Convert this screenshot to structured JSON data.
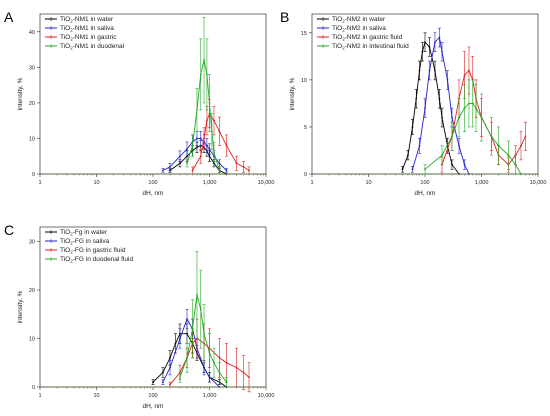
{
  "chart_data": [
    {
      "panel": "A",
      "type": "line",
      "x_scale": "log",
      "xlim": [
        1,
        10000
      ],
      "ylim": [
        0,
        45
      ],
      "xticks": [
        1,
        10,
        100,
        1000,
        10000
      ],
      "xtick_labels": [
        "1",
        "10",
        "100",
        "1,000",
        "10,000"
      ],
      "yticks": [
        0,
        10,
        20,
        30,
        40
      ],
      "ytick_labels": [
        "0",
        "10",
        "20",
        "30",
        "40"
      ],
      "xlabel": "dH, nm",
      "ylabel": "intensity, %",
      "legend_position": "top-left",
      "series": [
        {
          "legend_parts": [
            "TiO",
            "2",
            "-NM1 in water"
          ],
          "color": "#000000",
          "x": [
            200,
            300,
            400,
            500,
            600,
            700,
            800,
            900,
            1000,
            1200,
            1500,
            2000
          ],
          "y": [
            1,
            3,
            5,
            6.5,
            7.5,
            8,
            7.5,
            6.5,
            5,
            3,
            1,
            0
          ],
          "err": [
            0.5,
            1,
            1.5,
            1.5,
            1.5,
            1.5,
            1.5,
            1.5,
            1.5,
            1,
            0.5,
            0
          ]
        },
        {
          "legend_parts": [
            "TiO",
            "2",
            "-NM1 in saliva"
          ],
          "color": "#2222cc",
          "x": [
            150,
            200,
            300,
            400,
            500,
            600,
            700,
            800,
            900,
            1000,
            1200,
            1500,
            2000
          ],
          "y": [
            1,
            2,
            5,
            7,
            9,
            10,
            10,
            9,
            8,
            7,
            5,
            3,
            1
          ],
          "err": [
            0.5,
            1,
            1.5,
            2,
            2,
            2,
            2,
            2,
            2,
            1.5,
            1.5,
            1,
            0.5
          ]
        },
        {
          "legend_parts": [
            "TiO",
            "2",
            "-NM1 in gastric"
          ],
          "color": "#dd2222",
          "x": [
            500,
            700,
            800,
            900,
            1000,
            1200,
            1500,
            2000,
            3000,
            4000,
            5000
          ],
          "y": [
            1,
            5,
            10,
            15,
            17,
            15,
            12,
            8,
            3,
            2,
            1
          ],
          "err": [
            1,
            2,
            3,
            4,
            4,
            4,
            4,
            3,
            2,
            1.5,
            1
          ]
        },
        {
          "legend_parts": [
            "TiO",
            "2",
            "-NM1 in duodenal"
          ],
          "color": "#22aa22",
          "x": [
            400,
            500,
            600,
            700,
            800,
            900,
            1000,
            1100,
            1200,
            1500
          ],
          "y": [
            3,
            8,
            18,
            28,
            32,
            28,
            20,
            12,
            6,
            1
          ],
          "err": [
            1,
            3,
            6,
            10,
            12,
            10,
            8,
            5,
            3,
            1
          ]
        }
      ]
    },
    {
      "panel": "B",
      "type": "line",
      "x_scale": "log",
      "xlim": [
        1,
        10000
      ],
      "ylim": [
        0,
        17
      ],
      "xticks": [
        1,
        10,
        100,
        1000,
        10000
      ],
      "xtick_labels": [
        "1",
        "10",
        "100",
        "1,000",
        "10,000"
      ],
      "yticks": [
        0,
        5,
        10,
        15
      ],
      "ytick_labels": [
        "0",
        "5",
        "10",
        "15"
      ],
      "xlabel": "dH, nm",
      "ylabel": "intensity, %",
      "legend_position": "top-left",
      "series": [
        {
          "legend_parts": [
            "TiO",
            "2",
            "-NM2 in water"
          ],
          "color": "#000000",
          "x": [
            40,
            50,
            60,
            70,
            80,
            90,
            100,
            120,
            150,
            180,
            200,
            250,
            300,
            400
          ],
          "y": [
            0.5,
            2,
            5,
            8,
            11,
            13,
            14,
            13.5,
            11,
            8,
            6,
            3,
            1,
            0
          ],
          "err": [
            0.3,
            0.5,
            0.8,
            1,
            1,
            1,
            1,
            1,
            1,
            1,
            1,
            0.8,
            0.5,
            0
          ]
        },
        {
          "legend_parts": [
            "TiO",
            "2",
            "-NM2 in saliva"
          ],
          "color": "#2222cc",
          "x": [
            60,
            80,
            100,
            120,
            150,
            180,
            200,
            250,
            300,
            400,
            500,
            600
          ],
          "y": [
            0.5,
            3,
            7,
            11,
            14,
            14.5,
            13,
            10,
            6,
            3,
            1,
            0
          ],
          "err": [
            0.3,
            0.8,
            1,
            1,
            1,
            1,
            1,
            1,
            1,
            0.8,
            0.5,
            0
          ]
        },
        {
          "legend_parts": [
            "TiO",
            "2",
            "-NM2 in gastric fluid"
          ],
          "color": "#dd2222",
          "x": [
            200,
            300,
            400,
            500,
            600,
            700,
            800,
            1000,
            1500,
            2000,
            3000,
            4000,
            5000,
            6000
          ],
          "y": [
            1,
            4,
            8,
            10.5,
            11,
            10,
            8,
            6,
            4,
            2,
            1,
            2,
            3,
            4
          ],
          "err": [
            0.8,
            1.5,
            2,
            2.5,
            2.5,
            2.5,
            2,
            2,
            1.5,
            1,
            0.8,
            1,
            1.5,
            1.5
          ]
        },
        {
          "legend_parts": [
            "TiO",
            "2",
            "-NM2 in intestinal fluid"
          ],
          "color": "#22aa22",
          "x": [
            100,
            200,
            300,
            400,
            500,
            600,
            700,
            800,
            1000,
            1500,
            2000,
            3000,
            4000,
            5000
          ],
          "y": [
            0.5,
            2,
            4,
            6,
            7,
            7.5,
            7.5,
            7,
            6,
            4,
            3,
            2,
            1,
            0
          ],
          "err": [
            0.5,
            1,
            1.5,
            2,
            2.5,
            2.5,
            2.5,
            2.5,
            2.5,
            2,
            2,
            1.5,
            1,
            0
          ]
        }
      ]
    },
    {
      "panel": "C",
      "type": "line",
      "x_scale": "log",
      "xlim": [
        1,
        10000
      ],
      "ylim": [
        0,
        33
      ],
      "xticks": [
        1,
        10,
        100,
        1000,
        10000
      ],
      "xtick_labels": [
        "1",
        "10",
        "100",
        "1,000",
        "10,000"
      ],
      "yticks": [
        0,
        10,
        20,
        30
      ],
      "ytick_labels": [
        "0",
        "10",
        "20",
        "30"
      ],
      "xlabel": "dH, nm",
      "ylabel": "intensity, %",
      "legend_position": "top-left",
      "series": [
        {
          "legend_parts": [
            "TiO",
            "2",
            "-Fg in water"
          ],
          "color": "#000000",
          "x": [
            100,
            150,
            200,
            250,
            300,
            400,
            500,
            600,
            800,
            1000,
            1500,
            2000
          ],
          "y": [
            1,
            3,
            6,
            9,
            11,
            11,
            9,
            7,
            4,
            2,
            1,
            0
          ],
          "err": [
            0.5,
            1,
            1.5,
            2,
            2,
            2,
            2,
            1.5,
            1,
            1,
            0.5,
            0
          ]
        },
        {
          "legend_parts": [
            "TiO",
            "2",
            "-FG in saliva"
          ],
          "color": "#2222cc",
          "x": [
            150,
            200,
            300,
            400,
            500,
            600,
            800,
            1000,
            1500
          ],
          "y": [
            1,
            4,
            10,
            14,
            12,
            8,
            4,
            2,
            0
          ],
          "err": [
            0.5,
            1.5,
            2,
            2,
            2,
            2,
            1.5,
            1,
            0
          ]
        },
        {
          "legend_parts": [
            "TiO",
            "2",
            "-FG in gastric fluid"
          ],
          "color": "#dd2222",
          "x": [
            200,
            300,
            400,
            500,
            600,
            800,
            1000,
            1500,
            2000,
            3000,
            4000,
            5000
          ],
          "y": [
            0.5,
            3,
            6,
            9,
            10,
            9,
            8,
            6,
            5,
            4,
            3,
            2
          ],
          "err": [
            0.5,
            1.5,
            2,
            3,
            4,
            4,
            4,
            4,
            4,
            4,
            3.5,
            3
          ]
        },
        {
          "legend_parts": [
            "TiO",
            "2",
            "-FG in duodenal fluid"
          ],
          "color": "#22aa22",
          "x": [
            300,
            400,
            500,
            600,
            700,
            800,
            1000,
            1200,
            1500,
            2000
          ],
          "y": [
            2,
            6,
            12,
            19,
            16,
            11,
            7,
            5,
            3,
            1
          ],
          "err": [
            1,
            3,
            6,
            9,
            8,
            6,
            4,
            3,
            2,
            1
          ]
        }
      ]
    }
  ]
}
